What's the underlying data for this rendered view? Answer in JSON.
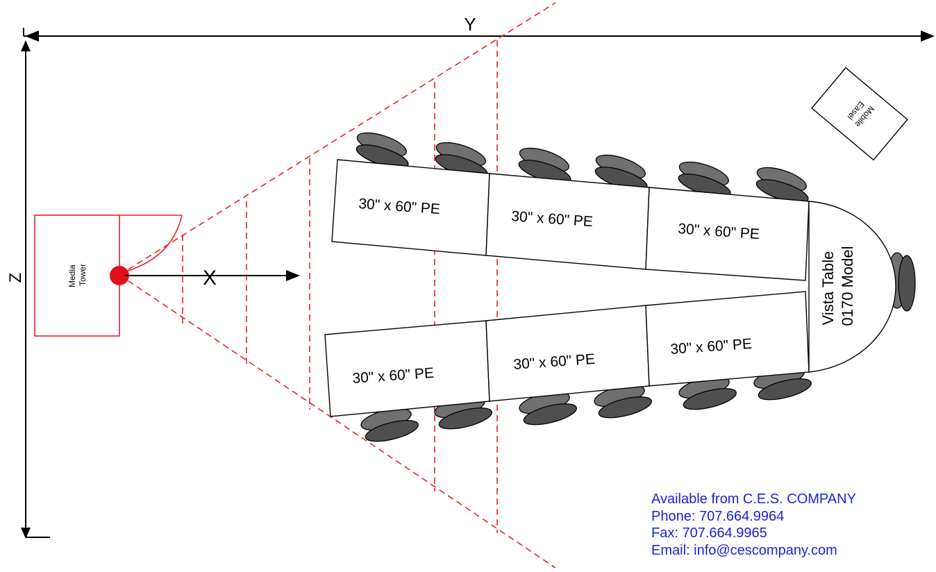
{
  "axes": {
    "x": "X",
    "y": "Y",
    "z": "Z"
  },
  "media_tower": {
    "line1": "Media",
    "line2": "Tower"
  },
  "mobile_easel": {
    "line1": "Mobile",
    "line2": "Easel"
  },
  "tables": {
    "top": [
      "30\" x 60\" PE",
      "30\" x 60\" PE",
      "30\" x 60\" PE"
    ],
    "bottom": [
      "30\" x 60\" PE",
      "30\" x 60\" PE",
      "30\" x 60\" PE"
    ]
  },
  "vista_table": {
    "line1": "Vista Table",
    "line2": "0170 Model"
  },
  "contact": {
    "company": "Available from C.E.S. COMPANY",
    "phone": "Phone: 707.664.9964",
    "fax": "Fax: 707.664.9965",
    "email": "Email: info@cescompany.com"
  },
  "colors": {
    "projection": "#e8202a",
    "contact_text": "#1a22d8",
    "chair": "#707070"
  }
}
